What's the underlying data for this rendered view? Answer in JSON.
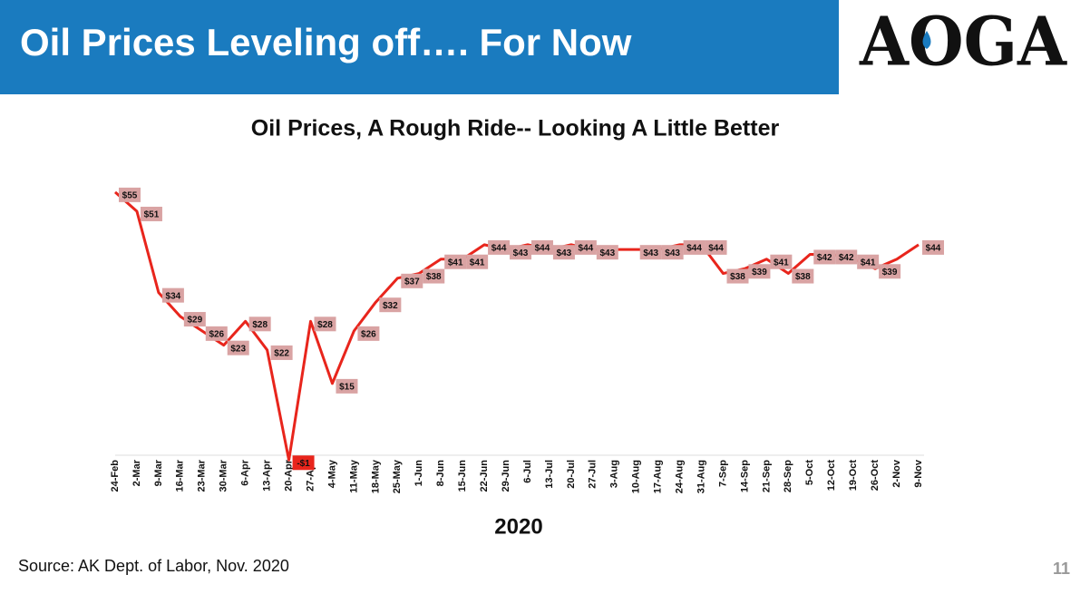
{
  "header": {
    "title": "Oil Prices Leveling off…. For Now",
    "logo": "AOGA"
  },
  "chart_data": {
    "type": "line",
    "title": "Oil Prices, A Rough Ride-- Looking A Little Better",
    "x_label": "2020",
    "categories": [
      "24-Feb",
      "2-Mar",
      "9-Mar",
      "16-Mar",
      "23-Mar",
      "30-Mar",
      "6-Apr",
      "13-Apr",
      "20-Apr",
      "27-Apr",
      "4-May",
      "11-May",
      "18-May",
      "25-May",
      "1-Jun",
      "8-Jun",
      "15-Jun",
      "22-Jun",
      "29-Jun",
      "6-Jul",
      "13-Jul",
      "20-Jul",
      "27-Jul",
      "3-Aug",
      "10-Aug",
      "17-Aug",
      "24-Aug",
      "31-Aug",
      "7-Sep",
      "14-Sep",
      "21-Sep",
      "28-Sep",
      "5-Oct",
      "12-Oct",
      "19-Oct",
      "26-Oct",
      "2-Nov",
      "9-Nov"
    ],
    "series": [
      {
        "name": "Oil Price",
        "color": "#e8251c",
        "values": [
          55,
          51,
          34,
          29,
          26,
          23,
          28,
          22,
          -1,
          28,
          15,
          26,
          32,
          37,
          38,
          41,
          41,
          44,
          43,
          44,
          43,
          44,
          43,
          43,
          43,
          43,
          44,
          44,
          38,
          39,
          41,
          38,
          42,
          42,
          41,
          39,
          41,
          44
        ],
        "value_labels": [
          "$55",
          "$51",
          "$34",
          "$29",
          "$26",
          "$23",
          "$28",
          "$22",
          "-$1",
          "$28",
          "$15",
          "$26",
          "$32",
          "$37",
          "$38",
          "$41",
          "$41",
          "$44",
          "$43",
          "$44",
          "$43",
          "$44",
          "$43",
          null,
          "$43",
          "$43",
          "$44",
          "$44",
          "$38",
          "$39",
          "$41",
          "$38",
          "$42",
          "$42",
          "$41",
          "$39",
          null,
          "$44"
        ]
      }
    ],
    "label_color": "#d9a3a3",
    "negative_label_color": "#e8251c",
    "ylim": [
      -5,
      60
    ]
  },
  "footer": {
    "source": "Source: AK Dept. of Labor, Nov. 2020",
    "page": "11"
  }
}
